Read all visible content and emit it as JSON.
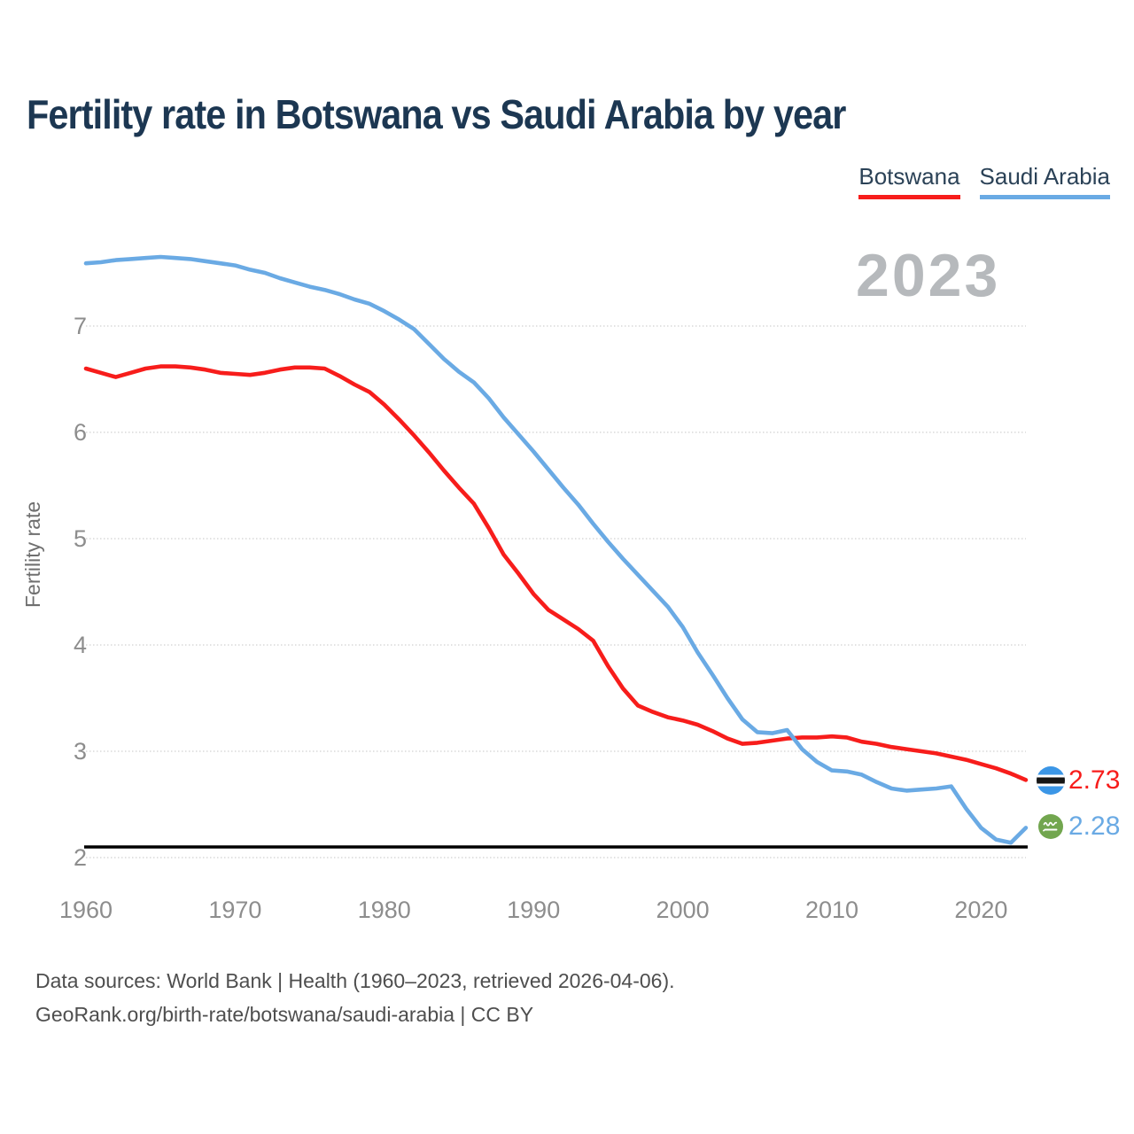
{
  "watermark_year": "2023",
  "end_labels": [
    {
      "series": "Botswana",
      "value": "2.73"
    },
    {
      "series": "Saudi Arabia",
      "value": "2.28"
    }
  ],
  "footer": {
    "line1": "Data sources: World Bank | Health (1960–2023, retrieved 2026-04-06).",
    "line2": "GeoRank.org/birth-rate/botswana/saudi-arabia | CC BY"
  },
  "chart_data": {
    "type": "line",
    "title": "Fertility rate in Botswana vs Saudi Arabia by year",
    "xlabel": "",
    "ylabel": "Fertility rate",
    "grid": "horizontal",
    "legend_position": "top-right",
    "xticks": [
      1960,
      1970,
      1980,
      1990,
      2000,
      2010,
      2020
    ],
    "yticks": [
      2,
      3,
      4,
      5,
      6,
      7
    ],
    "ylim": [
      1.95,
      7.8
    ],
    "xlim": [
      1960,
      2023
    ],
    "reference_line": {
      "value": 2.1,
      "color": "#000000"
    },
    "x": [
      1960,
      1961,
      1962,
      1963,
      1964,
      1965,
      1966,
      1967,
      1968,
      1969,
      1970,
      1971,
      1972,
      1973,
      1974,
      1975,
      1976,
      1977,
      1978,
      1979,
      1980,
      1981,
      1982,
      1983,
      1984,
      1985,
      1986,
      1987,
      1988,
      1989,
      1990,
      1991,
      1992,
      1993,
      1994,
      1995,
      1996,
      1997,
      1998,
      1999,
      2000,
      2001,
      2002,
      2003,
      2004,
      2005,
      2006,
      2007,
      2008,
      2009,
      2010,
      2011,
      2012,
      2013,
      2014,
      2015,
      2016,
      2017,
      2018,
      2019,
      2020,
      2021,
      2022,
      2023
    ],
    "series": [
      {
        "name": "Botswana",
        "color": "#f71d1b",
        "values": [
          6.6,
          6.56,
          6.52,
          6.56,
          6.6,
          6.62,
          6.62,
          6.61,
          6.59,
          6.56,
          6.55,
          6.54,
          6.56,
          6.59,
          6.61,
          6.61,
          6.6,
          6.53,
          6.45,
          6.38,
          6.26,
          6.12,
          5.97,
          5.81,
          5.64,
          5.48,
          5.33,
          5.1,
          4.85,
          4.67,
          4.48,
          4.33,
          4.24,
          4.15,
          4.04,
          3.8,
          3.59,
          3.43,
          3.37,
          3.32,
          3.29,
          3.25,
          3.19,
          3.12,
          3.07,
          3.08,
          3.1,
          3.12,
          3.13,
          3.13,
          3.14,
          3.13,
          3.09,
          3.07,
          3.04,
          3.02,
          3.0,
          2.98,
          2.95,
          2.92,
          2.88,
          2.84,
          2.79,
          2.73
        ]
      },
      {
        "name": "Saudi Arabia",
        "color": "#6aaae4",
        "values": [
          7.59,
          7.6,
          7.62,
          7.63,
          7.64,
          7.65,
          7.64,
          7.63,
          7.61,
          7.59,
          7.57,
          7.53,
          7.5,
          7.45,
          7.41,
          7.37,
          7.34,
          7.3,
          7.25,
          7.21,
          7.14,
          7.06,
          6.97,
          6.83,
          6.69,
          6.57,
          6.47,
          6.32,
          6.14,
          5.98,
          5.82,
          5.65,
          5.48,
          5.32,
          5.14,
          4.97,
          4.81,
          4.66,
          4.51,
          4.36,
          4.17,
          3.93,
          3.72,
          3.5,
          3.3,
          3.18,
          3.17,
          3.2,
          3.02,
          2.9,
          2.82,
          2.81,
          2.78,
          2.71,
          2.65,
          2.63,
          2.64,
          2.65,
          2.67,
          2.46,
          2.28,
          2.17,
          2.14,
          2.28
        ]
      }
    ]
  }
}
